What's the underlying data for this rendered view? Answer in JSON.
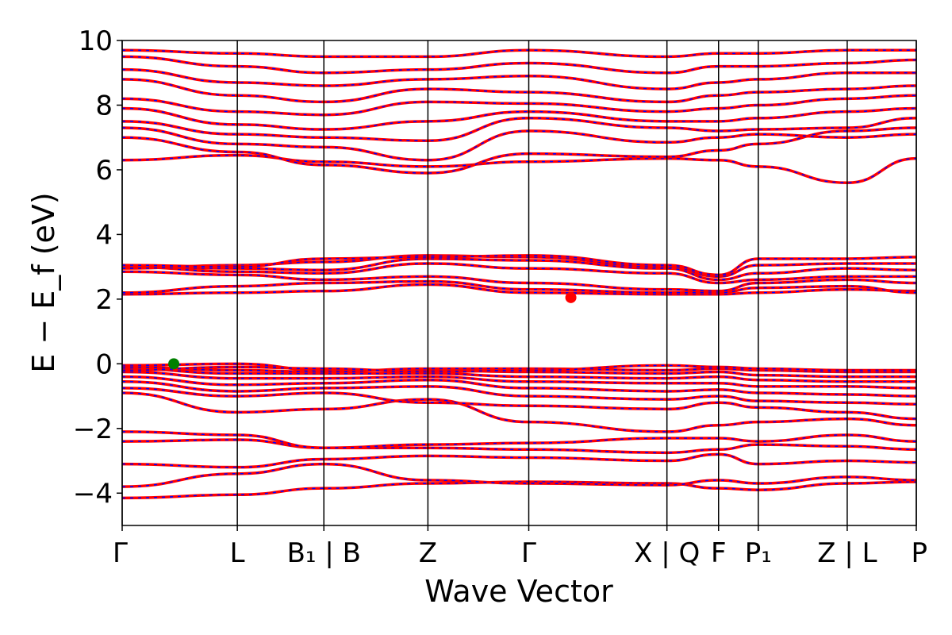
{
  "chart_data": {
    "type": "line",
    "title": "",
    "xlabel": "Wave Vector",
    "ylabel": "E − E_f (eV)",
    "ylim": [
      -5,
      10
    ],
    "y_ticks": [
      -4,
      -2,
      0,
      2,
      4,
      6,
      8,
      10
    ],
    "y_tick_labels": [
      "−4",
      "−2",
      "0",
      "2",
      "4",
      "6",
      "8",
      "10"
    ],
    "x_range": [
      0,
      1
    ],
    "kpoints": [
      {
        "x": 0.0,
        "label": "Γ"
      },
      {
        "x": 0.145,
        "label": "L"
      },
      {
        "x": 0.254,
        "label": "B₁ | B"
      },
      {
        "x": 0.385,
        "label": "Z"
      },
      {
        "x": 0.512,
        "label": "Γ"
      },
      {
        "x": 0.686,
        "label": "X | Q"
      },
      {
        "x": 0.751,
        "label": "F"
      },
      {
        "x": 0.801,
        "label": "P₁"
      },
      {
        "x": 0.913,
        "label": "Z | L"
      },
      {
        "x": 1.0,
        "label": "P"
      }
    ],
    "colors": {
      "band_red": "#ff0000",
      "band_blue": "#0000ff",
      "axis": "#000000"
    },
    "markers": [
      {
        "name": "VBM",
        "x": 0.065,
        "y": 0.0,
        "color": "#008000"
      },
      {
        "name": "CBM",
        "x": 0.565,
        "y": 2.05,
        "color": "#ff0000"
      }
    ],
    "series": [
      {
        "values": [
          -4.15,
          -4.05,
          -3.85,
          -3.7,
          -3.65,
          -3.7,
          -3.85,
          -3.9,
          -3.7,
          -3.65,
          -3.95
        ]
      },
      {
        "values": [
          -3.8,
          -3.4,
          -3.1,
          -3.6,
          -3.7,
          -3.75,
          -3.6,
          -3.7,
          -3.5,
          -3.6,
          -3.8
        ]
      },
      {
        "values": [
          -3.1,
          -3.2,
          -2.95,
          -2.85,
          -2.9,
          -3.0,
          -2.8,
          -3.1,
          -3.0,
          -3.05,
          -2.9
        ]
      },
      {
        "values": [
          -2.4,
          -2.35,
          -2.6,
          -2.6,
          -2.65,
          -2.75,
          -2.65,
          -2.5,
          -2.55,
          -2.65,
          -3.0
        ]
      },
      {
        "values": [
          -2.1,
          -2.2,
          -2.6,
          -2.5,
          -2.45,
          -2.3,
          -2.3,
          -2.4,
          -2.2,
          -2.4,
          -2.35
        ]
      },
      {
        "values": [
          -0.9,
          -1.5,
          -1.4,
          -1.1,
          -1.8,
          -2.1,
          -1.9,
          -1.8,
          -1.7,
          -1.9,
          -2.1
        ]
      },
      {
        "values": [
          -0.75,
          -1.0,
          -0.9,
          -1.2,
          -1.3,
          -1.4,
          -1.2,
          -1.35,
          -1.5,
          -1.7,
          -1.6
        ]
      },
      {
        "values": [
          -0.55,
          -0.85,
          -0.75,
          -0.7,
          -1.0,
          -1.1,
          -1.0,
          -1.15,
          -1.2,
          -1.25,
          -1.3
        ]
      },
      {
        "values": [
          -0.4,
          -0.65,
          -0.6,
          -0.5,
          -0.75,
          -0.85,
          -0.8,
          -0.9,
          -0.95,
          -1.0,
          -1.05
        ]
      },
      {
        "values": [
          -0.25,
          -0.45,
          -0.45,
          -0.4,
          -0.55,
          -0.6,
          -0.6,
          -0.7,
          -0.7,
          -0.75,
          -0.8
        ]
      },
      {
        "values": [
          -0.15,
          -0.3,
          -0.3,
          -0.3,
          -0.4,
          -0.45,
          -0.4,
          -0.5,
          -0.55,
          -0.55,
          -0.6
        ]
      },
      {
        "values": [
          -0.05,
          0.0,
          -0.2,
          -0.2,
          -0.25,
          -0.3,
          -0.25,
          -0.35,
          -0.4,
          -0.4,
          -0.45
        ]
      },
      {
        "values": [
          -0.1,
          -0.2,
          -0.25,
          -0.15,
          -0.15,
          -0.2,
          -0.15,
          -0.2,
          -0.25,
          -0.25,
          -0.3
        ]
      },
      {
        "values": [
          -0.2,
          -0.1,
          -0.15,
          -0.25,
          -0.2,
          -0.05,
          -0.1,
          -0.15,
          -0.2,
          -0.2,
          -0.15
        ]
      },
      {
        "values": [
          2.15,
          2.2,
          2.25,
          2.45,
          2.2,
          2.15,
          2.15,
          2.2,
          2.3,
          2.25,
          2.2
        ]
      },
      {
        "values": [
          2.2,
          2.4,
          2.5,
          2.55,
          2.3,
          2.2,
          2.2,
          2.35,
          2.4,
          2.2,
          2.3
        ]
      },
      {
        "values": [
          2.85,
          2.75,
          2.6,
          2.7,
          2.5,
          2.3,
          2.25,
          2.5,
          2.6,
          2.5,
          2.7
        ]
      },
      {
        "values": [
          3.0,
          2.85,
          2.8,
          3.1,
          2.95,
          2.8,
          2.5,
          2.6,
          2.7,
          2.7,
          2.9
        ]
      },
      {
        "values": [
          3.0,
          2.95,
          2.9,
          3.25,
          3.2,
          2.95,
          2.6,
          2.8,
          2.95,
          2.9,
          3.0
        ]
      },
      {
        "values": [
          2.95,
          3.05,
          3.15,
          3.35,
          3.3,
          3.0,
          2.7,
          3.05,
          3.1,
          3.1,
          3.1
        ]
      },
      {
        "values": [
          3.05,
          3.0,
          3.25,
          3.3,
          3.35,
          3.05,
          2.75,
          3.25,
          3.25,
          3.3,
          3.2
        ]
      },
      {
        "values": [
          6.3,
          6.45,
          6.25,
          6.1,
          6.25,
          6.35,
          6.3,
          6.1,
          5.6,
          6.35,
          6.2
        ]
      },
      {
        "values": [
          7.0,
          6.55,
          6.15,
          5.9,
          6.5,
          6.4,
          6.6,
          6.8,
          7.2,
          7.3,
          7.5
        ]
      },
      {
        "values": [
          7.3,
          6.8,
          6.7,
          6.3,
          7.2,
          6.85,
          7.0,
          7.1,
          7.0,
          7.1,
          7.0
        ]
      },
      {
        "values": [
          7.5,
          7.1,
          7.0,
          6.9,
          7.6,
          7.3,
          7.2,
          7.25,
          7.3,
          7.6,
          7.7
        ]
      },
      {
        "values": [
          7.9,
          7.4,
          7.25,
          7.5,
          7.8,
          7.5,
          7.5,
          7.6,
          7.8,
          7.9,
          8.1
        ]
      },
      {
        "values": [
          8.2,
          7.8,
          7.7,
          8.1,
          8.05,
          7.8,
          7.9,
          8.0,
          8.2,
          8.3,
          8.5
        ]
      },
      {
        "values": [
          8.8,
          8.3,
          8.1,
          8.5,
          8.4,
          8.1,
          8.3,
          8.4,
          8.5,
          8.6,
          8.9
        ]
      },
      {
        "values": [
          9.1,
          8.7,
          8.6,
          8.8,
          8.9,
          8.5,
          8.7,
          8.8,
          9.0,
          9.0,
          9.1
        ]
      },
      {
        "values": [
          9.5,
          9.2,
          9.0,
          9.1,
          9.3,
          9.0,
          9.2,
          9.2,
          9.3,
          9.4,
          9.5
        ]
      },
      {
        "values": [
          9.7,
          9.6,
          9.5,
          9.5,
          9.7,
          9.5,
          9.6,
          9.6,
          9.7,
          9.7,
          9.8
        ]
      }
    ]
  }
}
